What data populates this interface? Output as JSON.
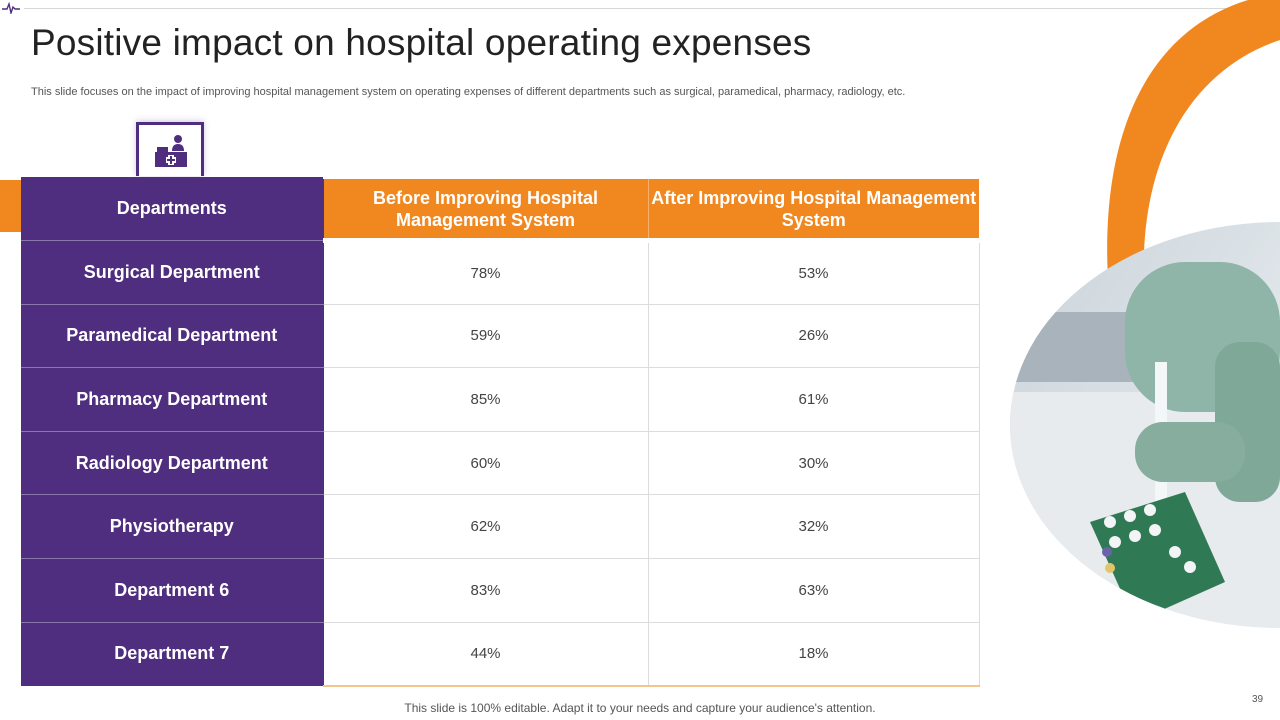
{
  "slide": {
    "title": "Positive impact on hospital operating expenses",
    "subtitle": "This slide focuses on the impact of improving hospital management system on operating expenses of different departments such as surgical, paramedical, pharmacy, radiology, etc.",
    "footer": "This slide is 100% editable. Adapt it to your needs and capture your audience's attention.",
    "page_number": "39"
  },
  "colors": {
    "purple": "#4f2d7f",
    "orange": "#f0871f"
  },
  "icons": {
    "header": "reception-desk-icon",
    "corner": "pulse-line-icon"
  },
  "table": {
    "headers": [
      "Departments",
      "Before Improving Hospital Management System",
      "After Improving Hospital Management System"
    ],
    "rows": [
      {
        "department": "Surgical Department",
        "before": "78%",
        "after": "53%"
      },
      {
        "department": "Paramedical Department",
        "before": "59%",
        "after": "26%"
      },
      {
        "department": "Pharmacy Department",
        "before": "85%",
        "after": "61%"
      },
      {
        "department": "Radiology Department",
        "before": "60%",
        "after": "30%"
      },
      {
        "department": "Physiotherapy",
        "before": "62%",
        "after": "32%"
      },
      {
        "department": "Department 6",
        "before": "83%",
        "after": "63%"
      },
      {
        "department": "Department 7",
        "before": "44%",
        "after": "18%"
      }
    ]
  }
}
